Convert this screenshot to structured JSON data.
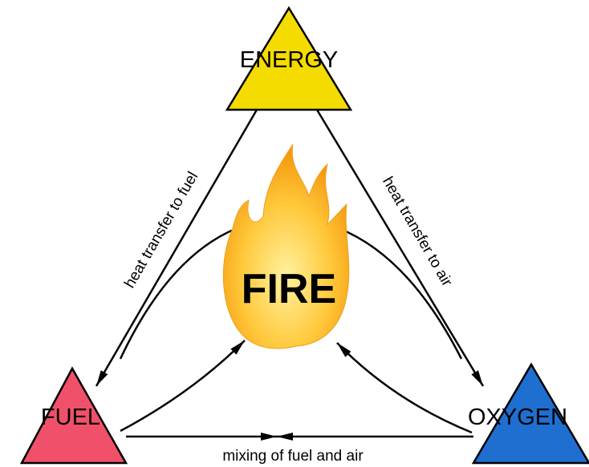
{
  "nodes": [
    {
      "label": "ENERGY"
    },
    {
      "label": "FUEL"
    },
    {
      "label": "OXYGEN"
    }
  ],
  "center": {
    "label": "FIRE"
  },
  "edges": [
    {
      "label": "heat transfer to fuel"
    },
    {
      "label": "heat transfer to air"
    },
    {
      "label": "mixing of fuel and air"
    }
  ]
}
